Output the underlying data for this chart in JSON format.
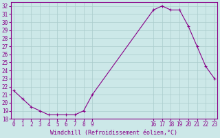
{
  "x": [
    0,
    1,
    2,
    3,
    4,
    5,
    6,
    7,
    8,
    9,
    16,
    17,
    18,
    19,
    20,
    21,
    22,
    23
  ],
  "y": [
    21.5,
    20.5,
    19.5,
    19.0,
    18.5,
    18.5,
    18.5,
    18.5,
    19.0,
    21.0,
    31.5,
    32.0,
    31.5,
    31.5,
    29.5,
    27.0,
    24.5,
    23.0
  ],
  "line_color": "#880088",
  "marker": "+",
  "bg_color": "#cce8e8",
  "grid_color": "#aacccc",
  "spine_color": "#880088",
  "tick_color": "#880088",
  "xlabel": "Windchill (Refroidissement éolien,°C)",
  "xlabel_color": "#880088",
  "ylim": [
    18,
    32.5
  ],
  "xlim": [
    -0.3,
    23.3
  ],
  "yticks": [
    18,
    19,
    20,
    21,
    22,
    23,
    24,
    25,
    26,
    27,
    28,
    29,
    30,
    31,
    32
  ],
  "xtick_positions": [
    0,
    1,
    2,
    3,
    4,
    5,
    6,
    7,
    8,
    9,
    16,
    17,
    18,
    19,
    20,
    21,
    22,
    23
  ],
  "xtick_labels": [
    "0",
    "1",
    "2",
    "3",
    "4",
    "5",
    "6",
    "7",
    "8",
    "9",
    "16",
    "17",
    "18",
    "19",
    "20",
    "21",
    "22",
    "23"
  ],
  "font_size": 5.5,
  "xlabel_font_size": 6.0,
  "linewidth": 0.8,
  "markersize": 3,
  "markeredgewidth": 0.8
}
